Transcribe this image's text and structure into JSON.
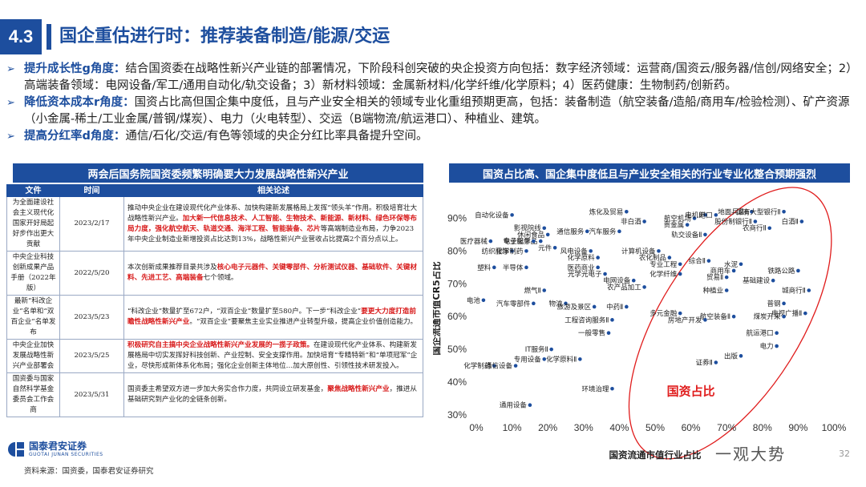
{
  "header": {
    "section": "4.3",
    "title": "国企重估进行时：推荐装备制造/能源/交运"
  },
  "bullets": [
    {
      "lead": "提升成长性g角度：",
      "text": "结合国资委在战略性新兴产业链的部署情况，下阶段科创突破的央企投资方向包括：数字经济领域：运营商/国资云/服务器/信创/网络安全；2）高端装备领域：电网设备/军工/通用自动化/轨交设备；3）新材料领域：金属新材料/化学纤维/化学原料；4）医药健康：生物制药/创新药。"
    },
    {
      "lead": "降低资本成本r角度：",
      "text": "国资占比高但国企集中度低，且与产业安全相关的领域专业化重组预期更高，包括：装备制造（航空装备/造船/商用车/检验检测）、矿产资源（小金属-稀土/工业金属/普钢/煤炭）、电力（火电转型）、交运（B端物流/航运港口）、种植业、建筑。"
    },
    {
      "lead": "提高分红率d角度：",
      "text": "通信/石化/交运/有色等领域的央企分红比率具备提升空间。"
    }
  ],
  "left_panel": {
    "banner": "两会后国务院国资委频繁明确要大力发展战略性新兴产业",
    "headers": [
      "文件",
      "时间",
      "相关论述"
    ],
    "rows": [
      {
        "doc": "为全面建设社会主义现代化国家开好局起好步作出更大贡献",
        "date": "2023/2/17",
        "parts": [
          {
            "t": "推动中央企业在建设现代化产业体系、加快构建新发展格局上发挥“领头羊”作用。积极培育壮大战略性新兴产业。",
            "h": false
          },
          {
            "t": "加大新一代信息技术、人工智能、生物技术、新能源、新材料、绿色环保等布局力度，强化航空航天、轨道交通、海洋工程、智能装备、芯片",
            "h": true
          },
          {
            "t": "等高端制造业布局，力争2023年中央企业制造业新增投资占比达到13%，战略性新兴产业营收占比提高2个百分点以上。",
            "h": false
          }
        ]
      },
      {
        "doc": "中央企业科技创新成果产品手册（2022年版）",
        "date": "2022/5/20",
        "parts": [
          {
            "t": "本次创新成果推荐目录共涉及",
            "h": false
          },
          {
            "t": "核心电子元器件、关键零部件、分析测试仪器、基础软件、关键材料、先进工艺、高端装备",
            "h": true
          },
          {
            "t": "七个领域。",
            "h": false
          }
        ]
      },
      {
        "doc": "最新“科改企业”名单和“双百企业”名单发布",
        "date": "2023/5/23",
        "parts": [
          {
            "t": "“科改企业”数量扩至672户，“双百企业”数量扩至580户。下一步“科改企业”",
            "h": false
          },
          {
            "t": "要更大力度打造前瞻性战略性新兴产业",
            "h": true
          },
          {
            "t": "。“双百企业”要聚焦主业实业推进产业转型升级，提高企业价值创造能力。",
            "h": false
          }
        ]
      },
      {
        "doc": "中央企业加快发展战略性新兴产业部署会",
        "date": "2023/5/25",
        "parts": [
          {
            "t": "积极研究自主搞中央企业战略性新兴产业发展的一揽子政策。",
            "h": true
          },
          {
            "t": "在建设现代化产业体系、构建新发展格局中切实发挥好科技创新、产业控制、安全支撑作用。加快培育“专精特新”和“单项冠军”企业，尽快形成新体系化布局；强化企业创新主体地位…加大原创性、引领性技术研发投入。",
            "h": false
          }
        ]
      },
      {
        "doc": "国资委与国家自然科学基金委员会工作会商",
        "date": "2023/5/31",
        "parts": [
          {
            "t": "国资委主希望双方进一步加大务实合作力度，共同设立研发基金，",
            "h": false
          },
          {
            "t": "聚焦战略性新兴产业",
            "h": true
          },
          {
            "t": "，推进从基础研究到产业化的全链条创新。",
            "h": false
          }
        ]
      }
    ]
  },
  "chart_data": {
    "type": "scatter",
    "title": "国资占比高、国企集中度低且与产业安全相关的行业专业化整合预期强烈",
    "xlabel": "国资流通市值行业占比",
    "ylabel": "国企流通市值CR5占比",
    "xlim": [
      0,
      100
    ],
    "ylim": [
      30,
      95
    ],
    "xticks": [
      "0%",
      "10%",
      "20%",
      "30%",
      "40%",
      "50%",
      "60%",
      "70%",
      "80%",
      "90%",
      "100%"
    ],
    "yticks": [
      "30%",
      "40%",
      "50%",
      "60%",
      "70%",
      "80%",
      "90%"
    ],
    "ellipse_label": "国资占比",
    "colors": {
      "point": "#1d4e9e",
      "ellipse": "#e01c1c",
      "axis": "#333333"
    },
    "points": [
      {
        "label": "自动化设备",
        "x": 10,
        "y": 91
      },
      {
        "label": "影视院线",
        "x": 19,
        "y": 87
      },
      {
        "label": "休闲食品",
        "x": 20,
        "y": 85
      },
      {
        "label": "电子化学品",
        "x": 18,
        "y": 83
      },
      {
        "label": "医疗器械",
        "x": 4,
        "y": 83
      },
      {
        "label": "专业服务",
        "x": 16,
        "y": 83
      },
      {
        "label": "元件",
        "x": 22,
        "y": 81
      },
      {
        "label": "纺织服饰",
        "x": 10,
        "y": 80
      },
      {
        "label": "化学制药",
        "x": 14,
        "y": 80
      },
      {
        "label": "塑料",
        "x": 5,
        "y": 75
      },
      {
        "label": "半导体",
        "x": 14,
        "y": 75
      },
      {
        "label": "燃气Ⅱ",
        "x": 19,
        "y": 68
      },
      {
        "label": "电池",
        "x": 2,
        "y": 65
      },
      {
        "label": "汽车零部件",
        "x": 16,
        "y": 64
      },
      {
        "label": "物流",
        "x": 25,
        "y": 64
      },
      {
        "label": "炼化及贸易",
        "x": 42,
        "y": 92
      },
      {
        "label": "非白酒",
        "x": 47,
        "y": 89
      },
      {
        "label": "贵金属",
        "x": 59,
        "y": 88
      },
      {
        "label": "航空机场",
        "x": 61,
        "y": 90
      },
      {
        "label": "电机Ⅱ",
        "x": 64,
        "y": 91
      },
      {
        "label": "港口",
        "x": 67,
        "y": 91
      },
      {
        "label": "地面兵装Ⅱ",
        "x": 77,
        "y": 92
      },
      {
        "label": "国有大型银行Ⅱ",
        "x": 86,
        "y": 92
      },
      {
        "label": "股份制银行Ⅱ",
        "x": 78,
        "y": 89
      },
      {
        "label": "白酒Ⅱ",
        "x": 91,
        "y": 89
      },
      {
        "label": "农商行Ⅱ",
        "x": 82,
        "y": 87
      },
      {
        "label": "轨交设备Ⅱ",
        "x": 64,
        "y": 85
      },
      {
        "label": "通信服务",
        "x": 31,
        "y": 86
      },
      {
        "label": "汽车服务",
        "x": 40,
        "y": 86
      },
      {
        "label": "风电设备",
        "x": 32,
        "y": 80
      },
      {
        "label": "化学原料",
        "x": 34,
        "y": 78
      },
      {
        "label": "计算机设备",
        "x": 51,
        "y": 80
      },
      {
        "label": "农化制品",
        "x": 54,
        "y": 78
      },
      {
        "label": "医药商业",
        "x": 34,
        "y": 75
      },
      {
        "label": "光学光电子",
        "x": 36,
        "y": 73
      },
      {
        "label": "专业工程",
        "x": 57,
        "y": 76
      },
      {
        "label": "化学纤维",
        "x": 57,
        "y": 73
      },
      {
        "label": "综合Ⅱ",
        "x": 65,
        "y": 77
      },
      {
        "label": "水泥",
        "x": 74,
        "y": 76
      },
      {
        "label": "商用车",
        "x": 72,
        "y": 74
      },
      {
        "label": "铁路公路",
        "x": 90,
        "y": 74
      },
      {
        "label": "电网设备",
        "x": 44,
        "y": 71
      },
      {
        "label": "农产品加工",
        "x": 47,
        "y": 69
      },
      {
        "label": "贸易Ⅱ",
        "x": 70,
        "y": 72
      },
      {
        "label": "基础建设",
        "x": 83,
        "y": 71
      },
      {
        "label": "种植业",
        "x": 70,
        "y": 68
      },
      {
        "label": "城商行Ⅱ",
        "x": 93,
        "y": 68
      },
      {
        "label": "旅游及景区",
        "x": 33,
        "y": 63
      },
      {
        "label": "中药Ⅱ",
        "x": 42,
        "y": 63
      },
      {
        "label": "普钢",
        "x": 86,
        "y": 64
      },
      {
        "label": "电视广播Ⅱ",
        "x": 92,
        "y": 61
      },
      {
        "label": "多元金融",
        "x": 57,
        "y": 61
      },
      {
        "label": "煤炭开采",
        "x": 86,
        "y": 60
      },
      {
        "label": "航空装备Ⅱ",
        "x": 72,
        "y": 60
      },
      {
        "label": "工程咨询服务Ⅱ",
        "x": 38,
        "y": 59
      },
      {
        "label": "房地产开发",
        "x": 64,
        "y": 59
      },
      {
        "label": "一般零售",
        "x": 37,
        "y": 55
      },
      {
        "label": "航运港口",
        "x": 84,
        "y": 55
      },
      {
        "label": "电力",
        "x": 84,
        "y": 51
      },
      {
        "label": "IT服务Ⅱ",
        "x": 21,
        "y": 50
      },
      {
        "label": "出版",
        "x": 74,
        "y": 48
      },
      {
        "label": "专用设备",
        "x": 19,
        "y": 47
      },
      {
        "label": "化学原料Ⅱ",
        "x": 29,
        "y": 47
      },
      {
        "label": "证券Ⅱ",
        "x": 67,
        "y": 46
      },
      {
        "label": "化学制药",
        "x": 5,
        "y": 45
      },
      {
        "label": "通信设备",
        "x": 11,
        "y": 45
      },
      {
        "label": "环境治理",
        "x": 38,
        "y": 38
      },
      {
        "label": "通用设备",
        "x": 15,
        "y": 33
      }
    ]
  },
  "footer": {
    "logo_cn": "国泰君安证券",
    "logo_en": "GUOTAI JUNAN SECURITIES",
    "source": "资料来源：国资委，国泰君安证券研究",
    "watermark": "一观大势",
    "page": "32"
  }
}
